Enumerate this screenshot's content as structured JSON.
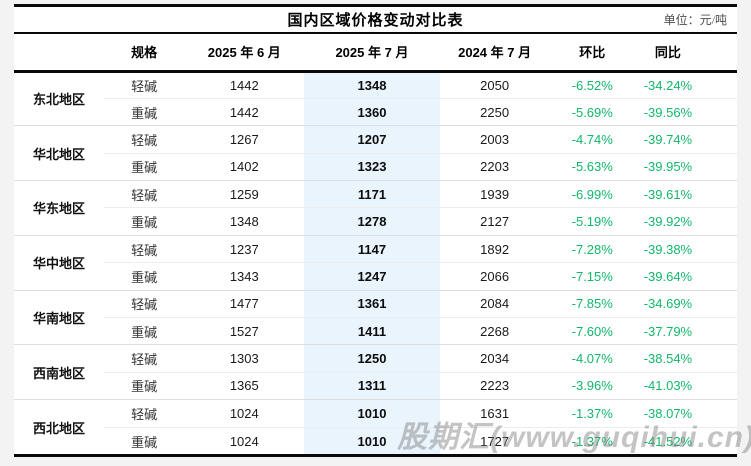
{
  "page": {
    "watermark": "股期汇(www.guqihui.cn)"
  },
  "header": {
    "title": "国内区域价格变动对比表",
    "unit_label": "单位：元/吨"
  },
  "colors": {
    "change_green": "#12b76a",
    "highlight_column_blue": "#e9f4fc",
    "rule_black": "#0a0a0a"
  },
  "chart_data": {
    "type": "table",
    "title": "国内区域价格变动对比表",
    "unit": "元/吨",
    "columns": [
      "规格",
      "2025 年 6 月",
      "2025 年 7 月",
      "2024 年 7 月",
      "环比",
      "同比"
    ],
    "highlighted_column": "2025 年 7 月",
    "regions": [
      {
        "name": "东北地区",
        "rows": [
          [
            "轻碱",
            "1442",
            "1348",
            "2050",
            "-6.52%",
            "-34.24%"
          ],
          [
            "重碱",
            "1442",
            "1360",
            "2250",
            "-5.69%",
            "-39.56%"
          ]
        ]
      },
      {
        "name": "华北地区",
        "rows": [
          [
            "轻碱",
            "1267",
            "1207",
            "2003",
            "-4.74%",
            "-39.74%"
          ],
          [
            "重碱",
            "1402",
            "1323",
            "2203",
            "-5.63%",
            "-39.95%"
          ]
        ]
      },
      {
        "name": "华东地区",
        "rows": [
          [
            "轻碱",
            "1259",
            "1171",
            "1939",
            "-6.99%",
            "-39.61%"
          ],
          [
            "重碱",
            "1348",
            "1278",
            "2127",
            "-5.19%",
            "-39.92%"
          ]
        ]
      },
      {
        "name": "华中地区",
        "rows": [
          [
            "轻碱",
            "1237",
            "1147",
            "1892",
            "-7.28%",
            "-39.38%"
          ],
          [
            "重碱",
            "1343",
            "1247",
            "2066",
            "-7.15%",
            "-39.64%"
          ]
        ]
      },
      {
        "name": "华南地区",
        "rows": [
          [
            "轻碱",
            "1477",
            "1361",
            "2084",
            "-7.85%",
            "-34.69%"
          ],
          [
            "重碱",
            "1527",
            "1411",
            "2268",
            "-7.60%",
            "-37.79%"
          ]
        ]
      },
      {
        "name": "西南地区",
        "rows": [
          [
            "轻碱",
            "1303",
            "1250",
            "2034",
            "-4.07%",
            "-38.54%"
          ],
          [
            "重碱",
            "1365",
            "1311",
            "2223",
            "-3.96%",
            "-41.03%"
          ]
        ]
      },
      {
        "name": "西北地区",
        "rows": [
          [
            "轻碱",
            "1024",
            "1010",
            "1631",
            "-1.37%",
            "-38.07%"
          ],
          [
            "重碱",
            "1024",
            "1010",
            "1727",
            "-1.37%",
            "-41.52%"
          ]
        ]
      }
    ]
  }
}
